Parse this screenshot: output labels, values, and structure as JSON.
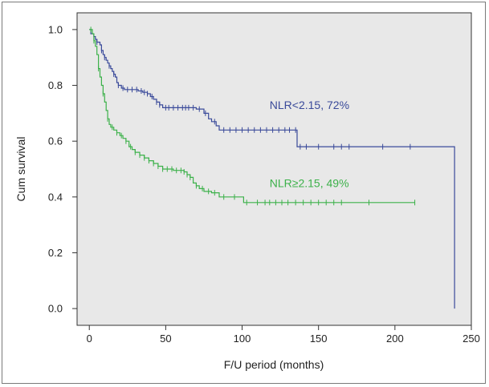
{
  "chart_data": {
    "type": "line",
    "subtype": "kaplan-meier survival",
    "xlabel": "F/U period (months)",
    "ylabel": "Cum survival",
    "xlim": [
      -8,
      250
    ],
    "ylim": [
      -0.06,
      1.06
    ],
    "xticks": [
      0,
      50,
      100,
      150,
      200,
      250
    ],
    "yticks": [
      0.0,
      0.2,
      0.4,
      0.6,
      0.8,
      1.0
    ],
    "xtick_labels": [
      "0",
      "50",
      "100",
      "150",
      "200",
      "250"
    ],
    "ytick_labels": [
      "0.0",
      "0.2",
      "0.4",
      "0.6",
      "0.8",
      "1.0"
    ],
    "grid": false,
    "background_color": "#e8e8e8",
    "series": [
      {
        "name": "NLR<2.15",
        "label": "NLR<2.15, 72%",
        "color": "#3a4a9a",
        "label_position": [
          118,
          0.73
        ],
        "steps": [
          [
            0,
            1.0
          ],
          [
            1,
            0.985
          ],
          [
            3,
            0.975
          ],
          [
            4,
            0.965
          ],
          [
            5,
            0.955
          ],
          [
            7,
            0.945
          ],
          [
            8,
            0.925
          ],
          [
            9,
            0.91
          ],
          [
            10,
            0.9
          ],
          [
            11,
            0.89
          ],
          [
            12,
            0.88
          ],
          [
            13,
            0.87
          ],
          [
            14,
            0.86
          ],
          [
            15,
            0.85
          ],
          [
            16,
            0.84
          ],
          [
            17,
            0.83
          ],
          [
            18,
            0.81
          ],
          [
            19,
            0.8
          ],
          [
            21,
            0.79
          ],
          [
            23,
            0.785
          ],
          [
            30,
            0.785
          ],
          [
            32,
            0.78
          ],
          [
            35,
            0.775
          ],
          [
            38,
            0.77
          ],
          [
            40,
            0.76
          ],
          [
            42,
            0.75
          ],
          [
            44,
            0.74
          ],
          [
            46,
            0.73
          ],
          [
            48,
            0.72
          ],
          [
            60,
            0.72
          ],
          [
            66,
            0.72
          ],
          [
            70,
            0.715
          ],
          [
            75,
            0.7
          ],
          [
            78,
            0.68
          ],
          [
            80,
            0.67
          ],
          [
            83,
            0.655
          ],
          [
            85,
            0.64
          ],
          [
            135,
            0.64
          ],
          [
            136,
            0.58
          ],
          [
            238,
            0.58
          ],
          [
            239,
            0.0
          ]
        ],
        "censor_times": [
          5,
          8,
          10,
          13,
          16,
          19,
          22,
          25,
          28,
          31,
          34,
          36,
          38,
          41,
          44,
          46,
          50,
          52,
          55,
          58,
          61,
          63,
          65,
          68,
          72,
          76,
          82,
          88,
          92,
          96,
          100,
          104,
          108,
          112,
          116,
          120,
          124,
          128,
          131,
          135,
          138,
          142,
          150,
          160,
          165,
          170,
          192,
          210
        ]
      },
      {
        "name": "NLR≥2.15",
        "label": "NLR≥2.15, 49%",
        "color": "#3cb14a",
        "label_position": [
          118,
          0.45
        ],
        "steps": [
          [
            0,
            1.0
          ],
          [
            2,
            0.985
          ],
          [
            3,
            0.96
          ],
          [
            4,
            0.94
          ],
          [
            5,
            0.91
          ],
          [
            6,
            0.86
          ],
          [
            7,
            0.83
          ],
          [
            8,
            0.8
          ],
          [
            9,
            0.77
          ],
          [
            10,
            0.74
          ],
          [
            11,
            0.71
          ],
          [
            12,
            0.68
          ],
          [
            13,
            0.66
          ],
          [
            14,
            0.65
          ],
          [
            16,
            0.64
          ],
          [
            18,
            0.63
          ],
          [
            20,
            0.62
          ],
          [
            22,
            0.61
          ],
          [
            24,
            0.6
          ],
          [
            26,
            0.58
          ],
          [
            28,
            0.57
          ],
          [
            30,
            0.56
          ],
          [
            33,
            0.55
          ],
          [
            36,
            0.54
          ],
          [
            39,
            0.53
          ],
          [
            42,
            0.52
          ],
          [
            45,
            0.51
          ],
          [
            48,
            0.5
          ],
          [
            55,
            0.495
          ],
          [
            60,
            0.495
          ],
          [
            62,
            0.49
          ],
          [
            64,
            0.48
          ],
          [
            66,
            0.47
          ],
          [
            68,
            0.45
          ],
          [
            70,
            0.44
          ],
          [
            72,
            0.43
          ],
          [
            75,
            0.42
          ],
          [
            80,
            0.415
          ],
          [
            85,
            0.4
          ],
          [
            100,
            0.4
          ],
          [
            101,
            0.38
          ],
          [
            213,
            0.38
          ]
        ],
        "censor_times": [
          1,
          3,
          6,
          9,
          12,
          15,
          18,
          21,
          24,
          27,
          30,
          33,
          36,
          39,
          42,
          45,
          48,
          51,
          54,
          57,
          60,
          62,
          64,
          66,
          70,
          74,
          78,
          82,
          88,
          95,
          103,
          110,
          115,
          118,
          122,
          126,
          130,
          135,
          140,
          145,
          150,
          155,
          160,
          165,
          183,
          213
        ]
      }
    ]
  }
}
